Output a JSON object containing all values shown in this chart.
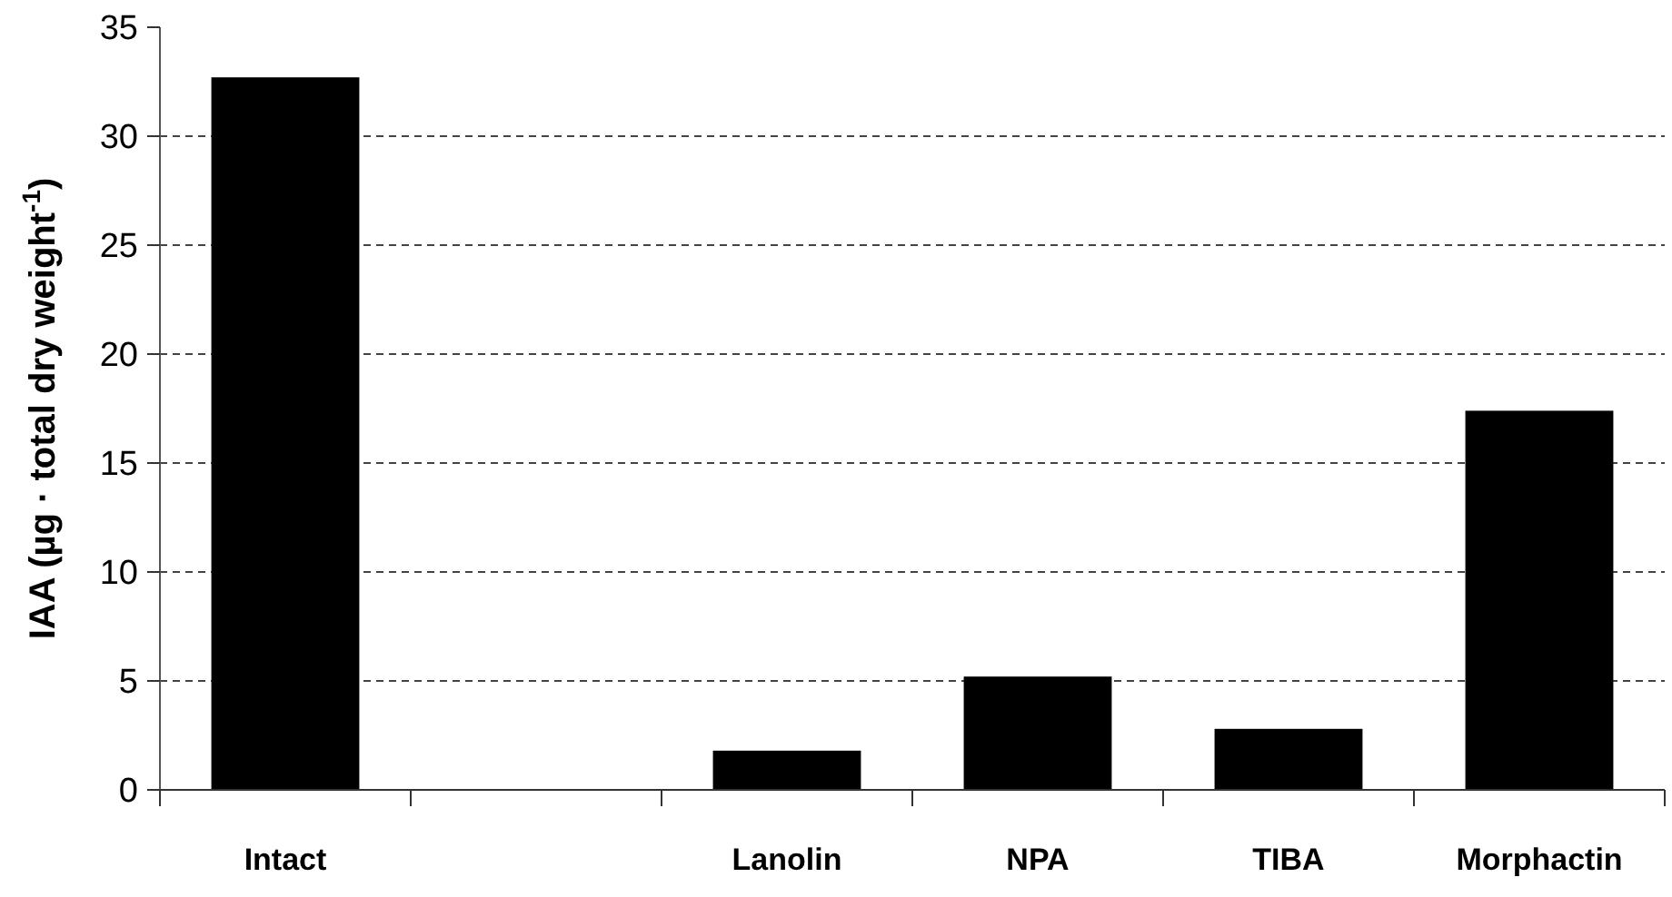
{
  "chart_data": {
    "type": "bar",
    "ylabel": "IAA (µg · total dry weight$^{-1}$)",
    "categories": [
      "Intact",
      null,
      "Lanolin",
      "NPA",
      "TIBA",
      "Morphactin"
    ],
    "values": [
      32.7,
      null,
      1.8,
      5.2,
      2.8,
      17.4
    ],
    "color": "#000000",
    "ylim": [
      0,
      35
    ],
    "yticks": [
      0,
      5,
      10,
      15,
      20,
      25,
      30,
      35
    ],
    "grid": "y"
  }
}
